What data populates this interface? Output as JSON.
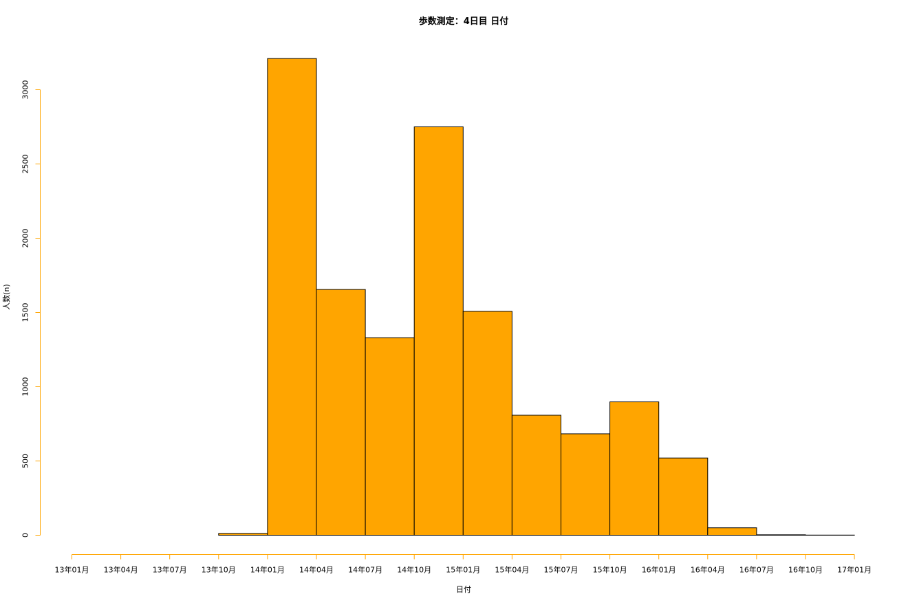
{
  "colors": {
    "bar_fill": "#FFA500",
    "bar_stroke": "#000000",
    "axis": "#FFA500",
    "text": "#000000"
  },
  "chart_data": {
    "type": "bar",
    "title": "歩数測定：4日目 日付",
    "xlabel": "日付",
    "ylabel": "人数(n)",
    "x_ticks": [
      "13年01月",
      "13年04月",
      "13年07月",
      "13年10月",
      "14年01月",
      "14年04月",
      "14年07月",
      "14年10月",
      "15年01月",
      "15年04月",
      "15年07月",
      "15年10月",
      "16年01月",
      "16年04月",
      "16年07月",
      "16年10月",
      "17年01月"
    ],
    "y_ticks": [
      0,
      500,
      1000,
      1500,
      2000,
      2500,
      3000
    ],
    "ylim": [
      0,
      3200
    ],
    "bins": [
      {
        "start": "13年01月",
        "end": "13年04月",
        "value": 0
      },
      {
        "start": "13年04月",
        "end": "13年07月",
        "value": 0
      },
      {
        "start": "13年07月",
        "end": "13年10月",
        "value": 0
      },
      {
        "start": "13年10月",
        "end": "14年01月",
        "value": 12
      },
      {
        "start": "14年01月",
        "end": "14年04月",
        "value": 3210
      },
      {
        "start": "14年04月",
        "end": "14年07月",
        "value": 1655
      },
      {
        "start": "14年07月",
        "end": "14年10月",
        "value": 1330
      },
      {
        "start": "14年10月",
        "end": "15年01月",
        "value": 2750
      },
      {
        "start": "15年01月",
        "end": "15年04月",
        "value": 1508
      },
      {
        "start": "15年04月",
        "end": "15年07月",
        "value": 808
      },
      {
        "start": "15年07月",
        "end": "15年10月",
        "value": 683
      },
      {
        "start": "15年10月",
        "end": "16年01月",
        "value": 898
      },
      {
        "start": "16年01月",
        "end": "16年04月",
        "value": 520
      },
      {
        "start": "16年04月",
        "end": "16年07月",
        "value": 50
      },
      {
        "start": "16年07月",
        "end": "16年10月",
        "value": 3
      },
      {
        "start": "16年10月",
        "end": "17年01月",
        "value": 1
      }
    ],
    "grid": false,
    "legend": "none"
  }
}
